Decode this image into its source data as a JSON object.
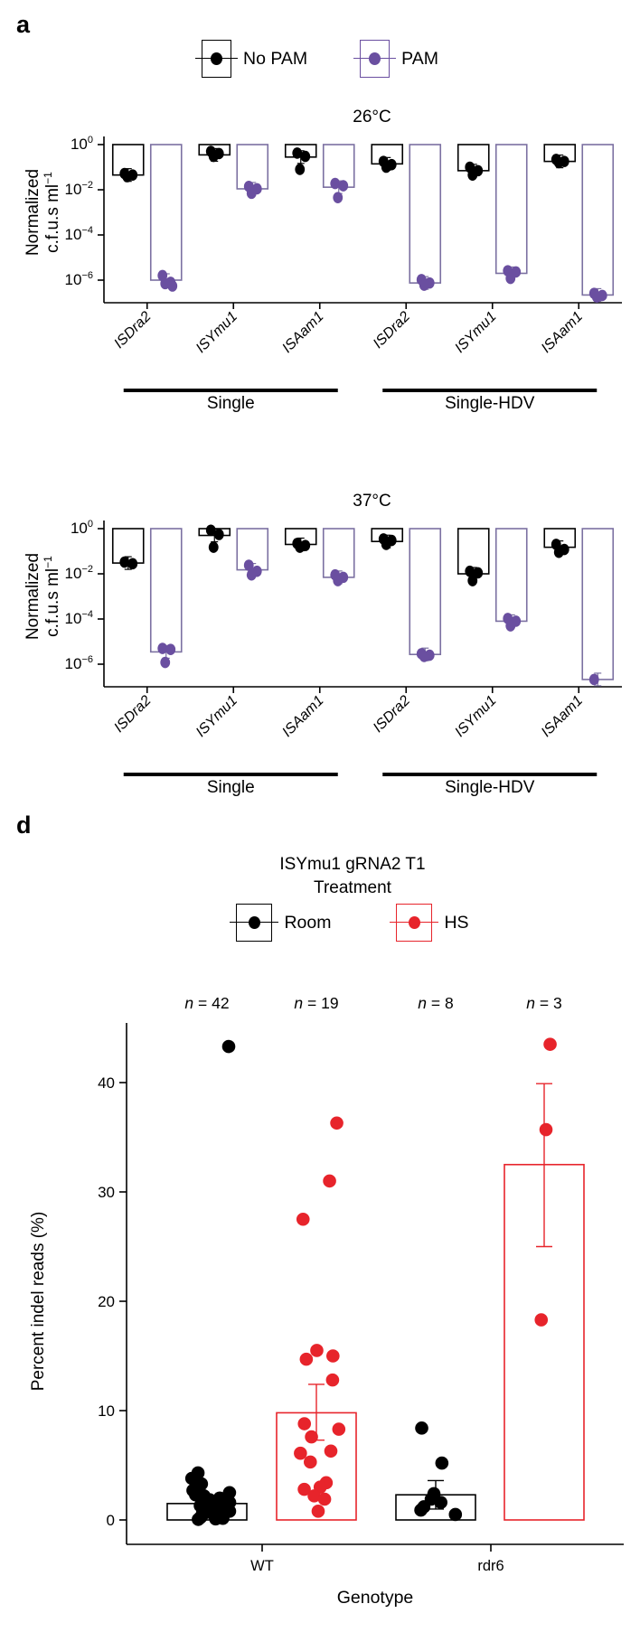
{
  "panel_a": {
    "label": "a",
    "legend": [
      {
        "label": "No PAM",
        "color": "#000000"
      },
      {
        "label": "PAM",
        "color": "#6a4fa0"
      }
    ]
  },
  "panel_d": {
    "label": "d",
    "title_line1": "ISYmu1 gRNA2 T1",
    "title_line2": "Treatment",
    "legend": [
      {
        "label": "Room",
        "color": "#000000"
      },
      {
        "label": "HS",
        "color": "#e7242b"
      }
    ]
  },
  "chart_data": [
    {
      "type": "bar-scatter-log",
      "title": "26°C",
      "ylabel": {
        "line1": "Normalized",
        "line2_base": "c.f.u.s ml",
        "line2_sup": "−1"
      },
      "yticks_exp": [
        0,
        -2,
        -4,
        -6
      ],
      "ylim_exp": [
        0,
        -7
      ],
      "categories": [
        "ISDra2",
        "ISYmu1",
        "ISAam1",
        "ISDra2",
        "ISYmu1",
        "ISAam1"
      ],
      "group_labels": [
        "Single",
        "Single-HDV"
      ],
      "series": [
        {
          "name": "No PAM",
          "point_color": "#000000",
          "bar_color": "#000000",
          "bar_means": [
            0.045,
            0.35,
            0.28,
            0.14,
            0.07,
            0.18
          ],
          "points": [
            [
              0.052,
              0.045,
              0.038
            ],
            [
              0.5,
              0.4,
              0.3
            ],
            [
              0.42,
              0.3,
              0.08
            ],
            [
              0.18,
              0.13,
              0.1
            ],
            [
              0.1,
              0.07,
              0.045
            ],
            [
              0.22,
              0.18,
              0.16
            ]
          ]
        },
        {
          "name": "PAM",
          "point_color": "#6a4fa0",
          "bar_color": "#7b70a1",
          "bar_means": [
            1e-06,
            0.011,
            0.013,
            7.5e-07,
            2e-06,
            2.2e-07
          ],
          "points": [
            [
              1.6e-06,
              8e-07,
              7e-07,
              5.5e-07
            ],
            [
              0.014,
              0.011,
              0.007
            ],
            [
              0.019,
              0.015,
              0.0045
            ],
            [
              1.05e-06,
              7.5e-07,
              6e-07
            ],
            [
              2.6e-06,
              2.3e-06,
              1.2e-06
            ],
            [
              2.6e-07,
              2.1e-07,
              1.8e-07
            ]
          ]
        }
      ]
    },
    {
      "type": "bar-scatter-log",
      "title": "37°C",
      "ylabel": {
        "line1": "Normalized",
        "line2_base": "c.f.u.s ml",
        "line2_sup": "−1"
      },
      "yticks_exp": [
        0,
        -2,
        -4,
        -6
      ],
      "ylim_exp": [
        0,
        -7
      ],
      "categories": [
        "ISDra2",
        "ISYmu1",
        "ISAam1",
        "ISDra2",
        "ISYmu1",
        "ISAam1"
      ],
      "group_labels": [
        "Single",
        "Single-HDV"
      ],
      "series": [
        {
          "name": "No PAM",
          "point_color": "#000000",
          "bar_color": "#000000",
          "bar_means": [
            0.03,
            0.5,
            0.2,
            0.27,
            0.01,
            0.15
          ],
          "points": [
            [
              0.033,
              0.028
            ],
            [
              0.85,
              0.55,
              0.15
            ],
            [
              0.22,
              0.18,
              0.15
            ],
            [
              0.35,
              0.3,
              0.2
            ],
            [
              0.013,
              0.011,
              0.005
            ],
            [
              0.2,
              0.12,
              0.09
            ]
          ]
        },
        {
          "name": "PAM",
          "point_color": "#6a4fa0",
          "bar_color": "#7b70a1",
          "bar_means": [
            3.5e-06,
            0.015,
            0.007,
            2.7e-06,
            8e-05,
            2.1e-07
          ],
          "points": [
            [
              5e-06,
              4.5e-06,
              1.2e-06
            ],
            [
              0.024,
              0.013,
              0.009
            ],
            [
              0.009,
              0.007,
              0.005
            ],
            [
              2.9e-06,
              2.5e-06,
              2.2e-06
            ],
            [
              0.000105,
              8e-05,
              5e-05
            ],
            [
              2.1e-07
            ]
          ]
        }
      ]
    },
    {
      "type": "bar-scatter",
      "title_line1": "ISYmu1 gRNA2 T1",
      "title_line2": "Treatment",
      "xlabel": "Genotype",
      "ylabel": "Percent indel reads (%)",
      "yticks": [
        0,
        10,
        20,
        30,
        40
      ],
      "genotypes": [
        "WT",
        "rdr6"
      ],
      "n_prefix": "n",
      "bars": [
        {
          "genotype": "WT",
          "treatment": "Room",
          "color": "#000000",
          "n": 42,
          "mean": 1.5,
          "err_low": 1.1,
          "err_high": 1.9,
          "points": [
            43.3,
            4.3,
            3.8,
            3.3,
            2.9,
            2.7,
            2.5,
            2.3,
            2.2,
            2.1,
            2.0,
            1.9,
            1.85,
            1.8,
            1.7,
            1.65,
            1.6,
            1.5,
            1.45,
            1.4,
            1.3,
            1.25,
            1.2,
            1.1,
            1.05,
            1.0,
            0.95,
            0.9,
            0.85,
            0.8,
            0.7,
            0.65,
            0.6,
            0.5,
            0.45,
            0.4,
            0.3,
            0.25,
            0.2,
            0.15,
            0.1,
            0.05
          ]
        },
        {
          "genotype": "WT",
          "treatment": "HS",
          "color": "#e7242b",
          "n": 19,
          "mean": 9.8,
          "err_low": 7.3,
          "err_high": 12.4,
          "points": [
            36.3,
            31.0,
            27.5,
            15.5,
            15.0,
            14.7,
            12.8,
            8.8,
            8.3,
            7.6,
            6.3,
            6.1,
            5.3,
            3.4,
            3.0,
            2.8,
            2.2,
            1.9,
            0.8
          ]
        },
        {
          "genotype": "rdr6",
          "treatment": "Room",
          "color": "#000000",
          "n": 8,
          "mean": 2.3,
          "err_low": 1.0,
          "err_high": 3.6,
          "points": [
            8.4,
            5.2,
            2.4,
            1.9,
            1.6,
            1.2,
            0.9,
            0.5
          ]
        },
        {
          "genotype": "rdr6",
          "treatment": "HS",
          "color": "#e7242b",
          "n": 3,
          "mean": 32.5,
          "err_low": 25.0,
          "err_high": 39.9,
          "points": [
            43.5,
            35.7,
            18.3
          ]
        }
      ]
    }
  ]
}
